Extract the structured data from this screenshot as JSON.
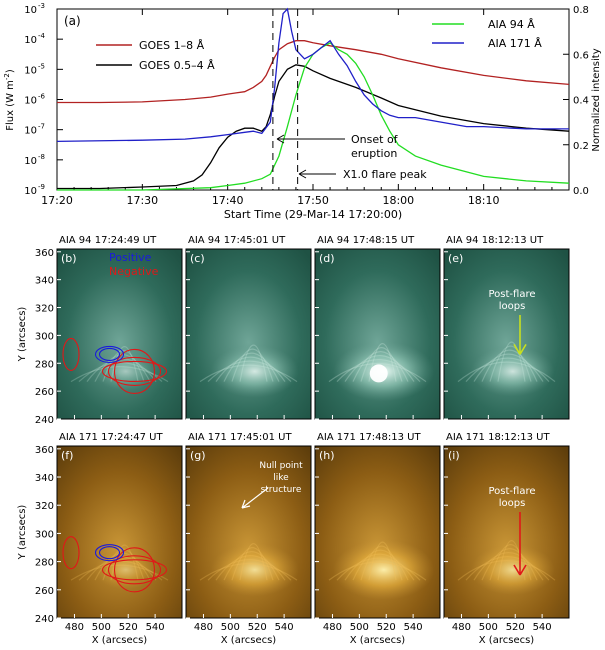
{
  "chart_data": [
    {
      "type": "line",
      "panel_label": "(a)",
      "xlabel": "Start Time (29-Mar-14 17:20:00)",
      "ylabel_left": "Flux (W m",
      "ylabel_left_sup": "-2",
      "ylabel_left_end": ")",
      "ylabel_right": "Normalized intensity",
      "x_ticks": [
        "17:20",
        "17:30",
        "17:40",
        "17:50",
        "18:00",
        "18:10"
      ],
      "x_tick_minutes": [
        0,
        10,
        20,
        30,
        40,
        50
      ],
      "xlim_minutes": [
        0,
        60
      ],
      "y_left_ticks": [
        "10",
        "10",
        "10",
        "10",
        "10",
        "10",
        "10"
      ],
      "y_left_exponents": [
        "-9",
        "-8",
        "-7",
        "-6",
        "-5",
        "-4",
        "-3"
      ],
      "y_left_log_range": [
        -9,
        -3
      ],
      "y_right_ticks": [
        "0.0",
        "0.2",
        "0.4",
        "0.6",
        "0.8"
      ],
      "y_right_range": [
        0,
        0.8
      ],
      "legend_left": [
        {
          "name": "GOES 1–8 Å",
          "color": "#b22222"
        },
        {
          "name": "GOES 0.5–4 Å",
          "color": "#000000"
        }
      ],
      "legend_right": [
        {
          "name": "AIA 94 Å",
          "color": "#22dd22"
        },
        {
          "name": "AIA 171 Å",
          "color": "#2020c8"
        }
      ],
      "vlines_minutes": [
        25.3,
        28.2
      ],
      "annotations": [
        {
          "text_line1": "Onset of",
          "text_line2": "eruption",
          "at_minute": 25.3
        },
        {
          "text_line1": "X1.0 flare peak",
          "text_line2": "",
          "at_minute": 28.2
        }
      ],
      "series": [
        {
          "name": "GOES 1–8 Å",
          "axis": "left",
          "x": [
            0,
            5,
            10,
            15,
            18,
            20,
            21,
            22,
            23,
            24,
            24.5,
            25,
            25.5,
            26,
            27,
            28,
            29,
            30,
            32,
            35,
            38,
            40,
            45,
            50,
            55,
            60
          ],
          "y": [
            -6.1,
            -6.1,
            -6.08,
            -6.0,
            -5.92,
            -5.82,
            -5.78,
            -5.74,
            -5.6,
            -5.4,
            -5.2,
            -4.9,
            -4.6,
            -4.35,
            -4.15,
            -4.05,
            -4.05,
            -4.12,
            -4.22,
            -4.35,
            -4.5,
            -4.65,
            -4.95,
            -5.2,
            -5.38,
            -5.5
          ]
        },
        {
          "name": "GOES 0.5–4 Å",
          "axis": "left",
          "x": [
            0,
            5,
            10,
            14,
            16,
            17,
            18,
            19,
            20,
            21,
            22,
            23,
            24,
            24.5,
            25,
            25.5,
            26,
            27,
            28,
            29,
            30,
            32,
            35,
            38,
            40,
            45,
            50,
            55,
            60
          ],
          "y": [
            -8.95,
            -8.95,
            -8.9,
            -8.85,
            -8.7,
            -8.5,
            -8.1,
            -7.6,
            -7.25,
            -7.05,
            -6.95,
            -6.95,
            -7.05,
            -6.9,
            -6.5,
            -5.9,
            -5.4,
            -5.0,
            -4.85,
            -4.9,
            -5.05,
            -5.3,
            -5.6,
            -5.95,
            -6.2,
            -6.55,
            -6.8,
            -6.95,
            -7.05
          ]
        },
        {
          "name": "AIA 94 Å",
          "axis": "right",
          "x": [
            0,
            10,
            18,
            20,
            22,
            24,
            25,
            26,
            27,
            28,
            29,
            30,
            31,
            32,
            33,
            34,
            35,
            36,
            37,
            38,
            39,
            40,
            42,
            45,
            48,
            50,
            55,
            60
          ],
          "y": [
            0.0,
            0.0,
            0.01,
            0.02,
            0.03,
            0.05,
            0.07,
            0.15,
            0.28,
            0.42,
            0.54,
            0.6,
            0.63,
            0.65,
            0.62,
            0.6,
            0.56,
            0.5,
            0.42,
            0.33,
            0.26,
            0.2,
            0.15,
            0.11,
            0.08,
            0.06,
            0.04,
            0.03
          ]
        },
        {
          "name": "AIA 171 Å",
          "axis": "right",
          "x": [
            0,
            10,
            15,
            18,
            20,
            22,
            23,
            24,
            25,
            25.5,
            26,
            26.5,
            27,
            27.5,
            28,
            28.5,
            29,
            30,
            31,
            32,
            33,
            34,
            35,
            36,
            37,
            38,
            39,
            40,
            42,
            45,
            48,
            50,
            55,
            60
          ],
          "y": [
            0.215,
            0.22,
            0.225,
            0.235,
            0.245,
            0.255,
            0.26,
            0.25,
            0.3,
            0.45,
            0.65,
            0.78,
            0.8,
            0.7,
            0.62,
            0.6,
            0.58,
            0.6,
            0.63,
            0.66,
            0.6,
            0.55,
            0.48,
            0.42,
            0.38,
            0.35,
            0.33,
            0.32,
            0.32,
            0.3,
            0.28,
            0.28,
            0.27,
            0.27
          ]
        }
      ]
    }
  ],
  "image_panels": {
    "x_ticks": [
      "480",
      "500",
      "520",
      "540"
    ],
    "x_tick_values": [
      480,
      500,
      520,
      540
    ],
    "xlim": [
      467,
      560
    ],
    "y_ticks": [
      "240",
      "260",
      "280",
      "300",
      "320",
      "340",
      "360"
    ],
    "y_tick_values": [
      240,
      260,
      280,
      300,
      320,
      340,
      360
    ],
    "ylim": [
      240,
      362
    ],
    "xlabel": "X (arcsecs)",
    "ylabel": "Y (arcsecs)",
    "row1": [
      {
        "title": "AIA 94 17:24:49 UT",
        "label": "(b)",
        "legend_pos": "Positive",
        "legend_neg": "Negative"
      },
      {
        "title": "AIA 94 17:45:01 UT",
        "label": "(c)"
      },
      {
        "title": "AIA 94 17:48:15 UT",
        "label": "(d)"
      },
      {
        "title": "AIA 94 18:12:13 UT",
        "label": "(e)",
        "note_line1": "Post-flare",
        "note_line2": "loops"
      }
    ],
    "row2": [
      {
        "title": "AIA 171 17:24:47 UT",
        "label": "(f)"
      },
      {
        "title": "AIA 171 17:45:01 UT",
        "label": "(g)",
        "note_line1": "Null point",
        "note_line2": "like",
        "note_line3": "structure"
      },
      {
        "title": "AIA 171 17:48:13 UT",
        "label": "(h)"
      },
      {
        "title": "AIA 171 18:12:13 UT",
        "label": "(i)",
        "note_line1": "Post-flare",
        "note_line2": "loops"
      }
    ],
    "colors": {
      "teal": "#2e6e5c",
      "gold": "#b07820",
      "positive": "#1a1adc",
      "negative": "#e01818",
      "arrow_yellow": "#c8e01e",
      "arrow_red": "#e01818"
    }
  }
}
